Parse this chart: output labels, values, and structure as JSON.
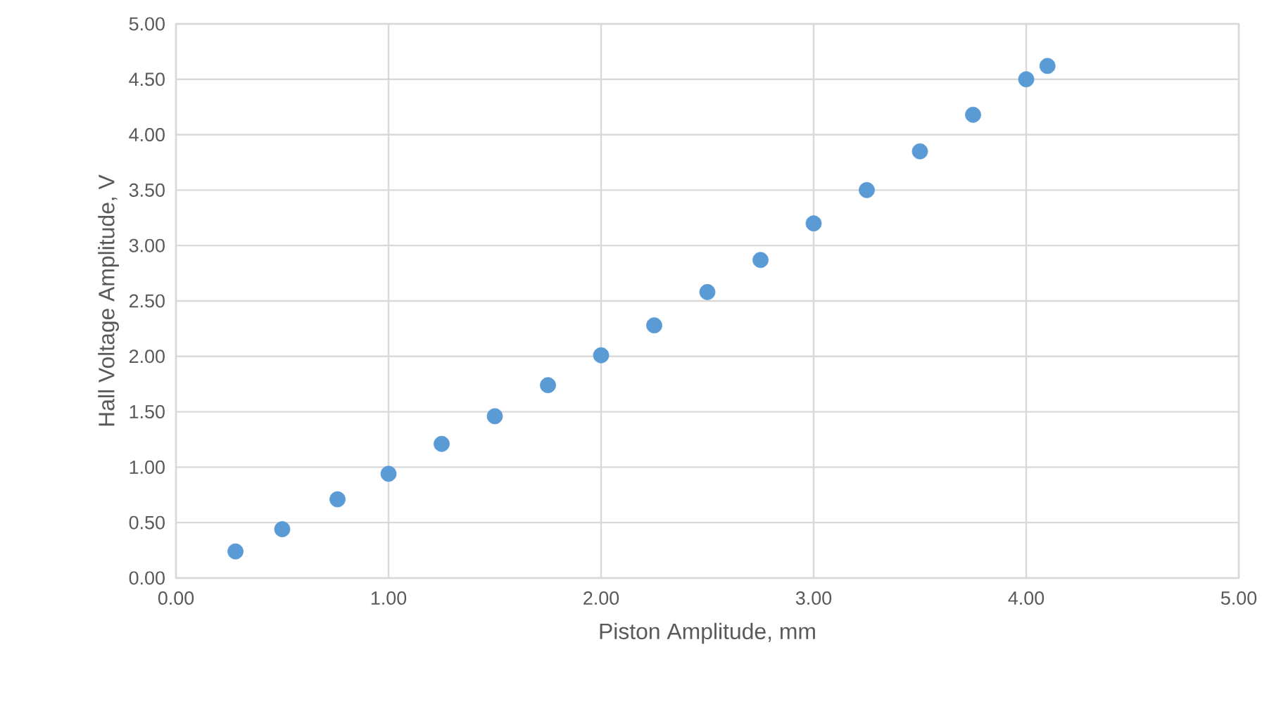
{
  "chart_data": {
    "type": "scatter",
    "xlabel": "Piston Amplitude, mm",
    "ylabel": "Hall Voltage Amplitude, V",
    "x": [
      0.28,
      0.5,
      0.76,
      1.0,
      1.25,
      1.5,
      1.75,
      2.0,
      2.25,
      2.5,
      2.75,
      3.0,
      3.25,
      3.5,
      3.75,
      4.0,
      4.1
    ],
    "series": [
      {
        "color": "#5b9bd5",
        "values": [
          0.24,
          0.44,
          0.71,
          0.94,
          1.21,
          1.46,
          1.74,
          2.01,
          2.28,
          2.58,
          2.87,
          3.2,
          3.5,
          3.85,
          4.18,
          4.5,
          4.62
        ]
      }
    ],
    "xlim": [
      0,
      5
    ],
    "ylim": [
      0,
      5
    ],
    "xticks": [
      {
        "value": 0,
        "label": "0.00"
      },
      {
        "value": 1,
        "label": "1.00"
      },
      {
        "value": 2,
        "label": "2.00"
      },
      {
        "value": 3,
        "label": "3.00"
      },
      {
        "value": 4,
        "label": "4.00"
      },
      {
        "value": 5,
        "label": "5.00"
      }
    ],
    "yticks": [
      {
        "value": 0,
        "label": "0.00"
      },
      {
        "value": 0.5,
        "label": "0.50"
      },
      {
        "value": 1,
        "label": "1.00"
      },
      {
        "value": 1.5,
        "label": "1.50"
      },
      {
        "value": 2,
        "label": "2.00"
      },
      {
        "value": 2.5,
        "label": "2.50"
      },
      {
        "value": 3,
        "label": "3.00"
      },
      {
        "value": 3.5,
        "label": "3.50"
      },
      {
        "value": 4,
        "label": "4.00"
      },
      {
        "value": 4.5,
        "label": "4.50"
      },
      {
        "value": 5,
        "label": "5.00"
      }
    ],
    "grid": true,
    "marker": "circle"
  }
}
